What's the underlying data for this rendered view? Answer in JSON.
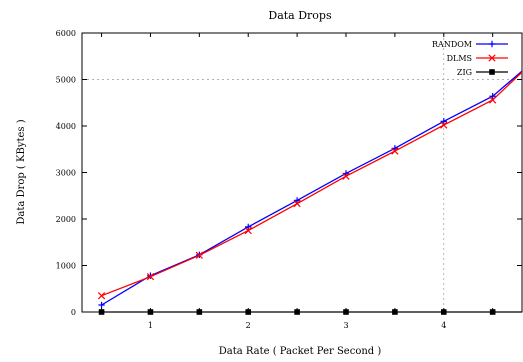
{
  "chart_data": {
    "type": "line",
    "title": "Data Drops",
    "xlabel": "Data Rate ( Packet Per Second )",
    "ylabel": "Data Drop ( KBytes )",
    "xlim": [
      0.3,
      4.8
    ],
    "ylim": [
      0,
      6000
    ],
    "xticks": [
      1,
      2,
      3,
      4
    ],
    "yticks": [
      0,
      1000,
      2000,
      3000,
      4000,
      5000,
      6000
    ],
    "ytick_labels": [
      "0",
      "1000",
      "2000",
      "3000",
      "4000",
      "5000",
      "6000"
    ],
    "grid": "dashed at x=4 and y=5000 only",
    "legend_position": "top-right",
    "x": [
      0.5,
      1.0,
      1.5,
      2.0,
      2.5,
      3.0,
      3.5,
      4.0,
      4.5,
      4.8
    ],
    "series": [
      {
        "name": "RANDOM",
        "color": "#0000ff",
        "marker": "plus",
        "values": [
          150,
          780,
          1230,
          1830,
          2400,
          2980,
          3520,
          4100,
          4640,
          5180
        ]
      },
      {
        "name": "DLMS",
        "color": "#ff0000",
        "marker": "cross",
        "values": [
          350,
          760,
          1220,
          1750,
          2330,
          2920,
          3460,
          4020,
          4560,
          5160
        ]
      },
      {
        "name": "ZIG",
        "color": "#000000",
        "marker": "square",
        "values": [
          0,
          0,
          0,
          0,
          0,
          0,
          0,
          0,
          0,
          0
        ]
      }
    ]
  }
}
